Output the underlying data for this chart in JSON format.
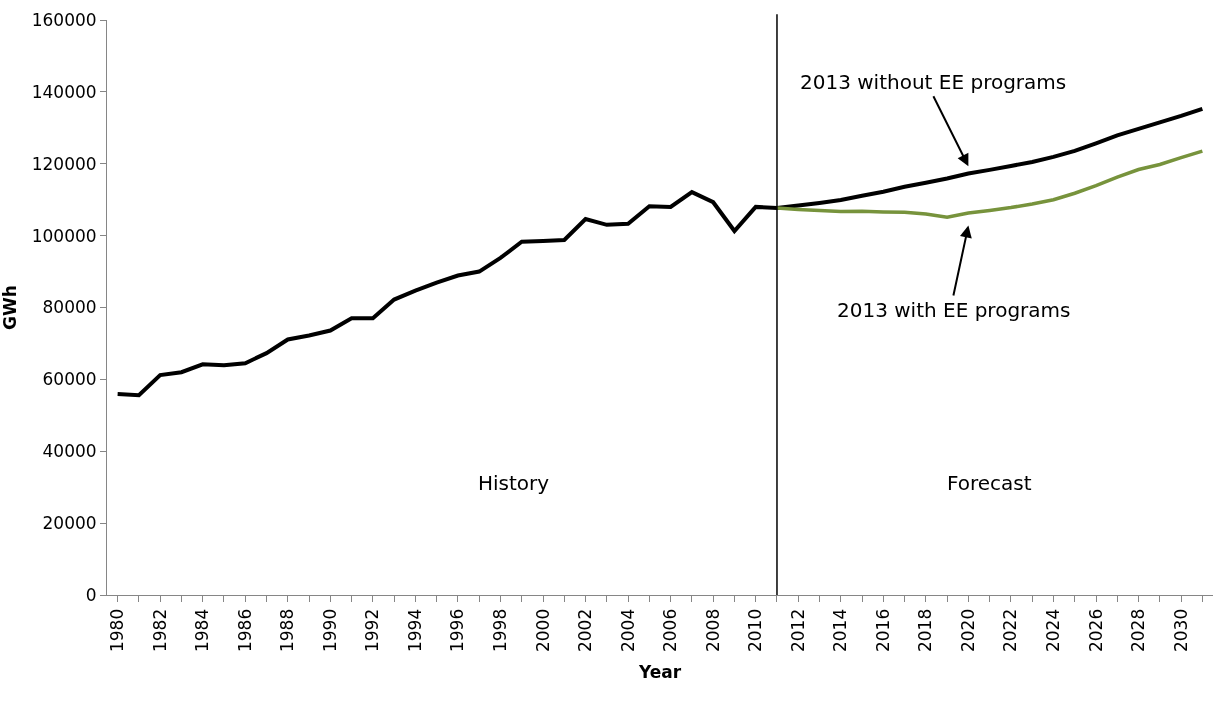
{
  "chart_data": {
    "type": "line",
    "xlabel": "Year",
    "ylabel": "GWh",
    "categories": [
      "1980",
      null,
      "1982",
      null,
      "1984",
      null,
      "1986",
      null,
      "1988",
      null,
      "1990",
      null,
      "1992",
      null,
      "1994",
      null,
      "1996",
      null,
      "1998",
      null,
      "2000",
      null,
      "2002",
      null,
      "2004",
      null,
      "2006",
      null,
      "2008",
      null,
      "2010",
      null,
      "2012",
      null,
      "2014",
      null,
      "2016",
      null,
      "2018",
      null,
      "2020",
      null,
      "2022",
      null,
      "2024",
      null,
      "2026",
      null,
      "2028",
      null,
      "2030",
      null
    ],
    "series": [
      {
        "name": "2013 without EE programs",
        "color": "#000000",
        "values": [
          55900,
          55600,
          61200,
          62000,
          64200,
          63900,
          64500,
          67300,
          71100,
          72200,
          73600,
          77000,
          77000,
          82200,
          84700,
          86900,
          88900,
          90000,
          93800,
          98300,
          98500,
          98800,
          104600,
          103000,
          103300,
          108200,
          108000,
          112100,
          109300,
          101300,
          108000,
          107700,
          108400,
          109100,
          109900,
          111100,
          112200,
          113600,
          114700,
          115900,
          117300,
          118300,
          119400,
          120500,
          121900,
          123600,
          125700,
          127900,
          129700,
          131500,
          133300,
          135300
        ]
      },
      {
        "name": "2013 with EE programs",
        "color": "#77933c",
        "values": [
          null,
          null,
          null,
          null,
          null,
          null,
          null,
          null,
          null,
          null,
          null,
          null,
          null,
          null,
          null,
          null,
          null,
          null,
          null,
          null,
          null,
          null,
          null,
          null,
          null,
          null,
          null,
          null,
          null,
          null,
          null,
          107700,
          107300,
          107000,
          106700,
          106800,
          106600,
          106500,
          106000,
          105100,
          106300,
          107000,
          107800,
          108800,
          110000,
          111800,
          113900,
          116300,
          118400,
          119800,
          121700,
          123500
        ]
      }
    ],
    "ylim": [
      0,
      160000
    ],
    "yticks": [
      0,
      20000,
      40000,
      60000,
      80000,
      100000,
      120000,
      140000,
      160000
    ],
    "annotations": [
      "History",
      "Forecast"
    ],
    "legend": false,
    "marker": "none",
    "line_style": "solid"
  }
}
